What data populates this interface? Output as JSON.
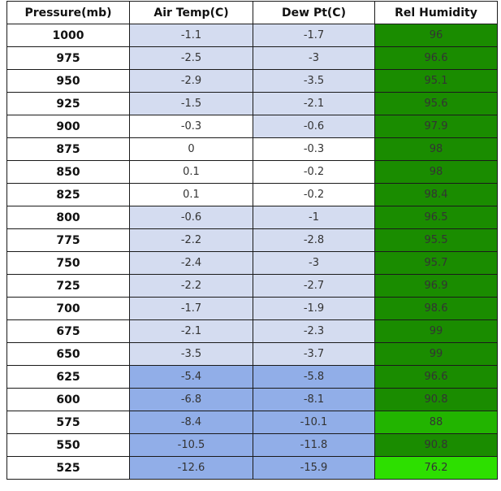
{
  "table": {
    "headers": [
      "Pressure(mb)",
      "Air Temp(C)",
      "Dew Pt(C)",
      "Rel Humidity"
    ],
    "rows": [
      {
        "pressure": "1000",
        "air_temp": "-1.1",
        "dew_pt": "-1.7",
        "rel_humidity": "96"
      },
      {
        "pressure": "975",
        "air_temp": "-2.5",
        "dew_pt": "-3",
        "rel_humidity": "96.6"
      },
      {
        "pressure": "950",
        "air_temp": "-2.9",
        "dew_pt": "-3.5",
        "rel_humidity": "95.1"
      },
      {
        "pressure": "925",
        "air_temp": "-1.5",
        "dew_pt": "-2.1",
        "rel_humidity": "95.6"
      },
      {
        "pressure": "900",
        "air_temp": "-0.3",
        "dew_pt": "-0.6",
        "rel_humidity": "97.9"
      },
      {
        "pressure": "875",
        "air_temp": "0",
        "dew_pt": "-0.3",
        "rel_humidity": "98"
      },
      {
        "pressure": "850",
        "air_temp": "0.1",
        "dew_pt": "-0.2",
        "rel_humidity": "98"
      },
      {
        "pressure": "825",
        "air_temp": "0.1",
        "dew_pt": "-0.2",
        "rel_humidity": "98.4"
      },
      {
        "pressure": "800",
        "air_temp": "-0.6",
        "dew_pt": "-1",
        "rel_humidity": "96.5"
      },
      {
        "pressure": "775",
        "air_temp": "-2.2",
        "dew_pt": "-2.8",
        "rel_humidity": "95.5"
      },
      {
        "pressure": "750",
        "air_temp": "-2.4",
        "dew_pt": "-3",
        "rel_humidity": "95.7"
      },
      {
        "pressure": "725",
        "air_temp": "-2.2",
        "dew_pt": "-2.7",
        "rel_humidity": "96.9"
      },
      {
        "pressure": "700",
        "air_temp": "-1.7",
        "dew_pt": "-1.9",
        "rel_humidity": "98.6"
      },
      {
        "pressure": "675",
        "air_temp": "-2.1",
        "dew_pt": "-2.3",
        "rel_humidity": "99"
      },
      {
        "pressure": "650",
        "air_temp": "-3.5",
        "dew_pt": "-3.7",
        "rel_humidity": "99"
      },
      {
        "pressure": "625",
        "air_temp": "-5.4",
        "dew_pt": "-5.8",
        "rel_humidity": "96.6"
      },
      {
        "pressure": "600",
        "air_temp": "-6.8",
        "dew_pt": "-8.1",
        "rel_humidity": "90.8"
      },
      {
        "pressure": "575",
        "air_temp": "-8.4",
        "dew_pt": "-10.1",
        "rel_humidity": "88"
      },
      {
        "pressure": "550",
        "air_temp": "-10.5",
        "dew_pt": "-11.8",
        "rel_humidity": "90.8"
      },
      {
        "pressure": "525",
        "air_temp": "-12.6",
        "dew_pt": "-15.9",
        "rel_humidity": "76.2"
      }
    ]
  },
  "colors": {
    "temp_white": "#ffffff",
    "temp_light_blue": "#d4dcf0",
    "temp_mid_blue": "#91aee8",
    "rh_dark_green": "#1a8c00",
    "rh_mid_green": "#22b400",
    "rh_bright_green": "#2ddf00"
  }
}
